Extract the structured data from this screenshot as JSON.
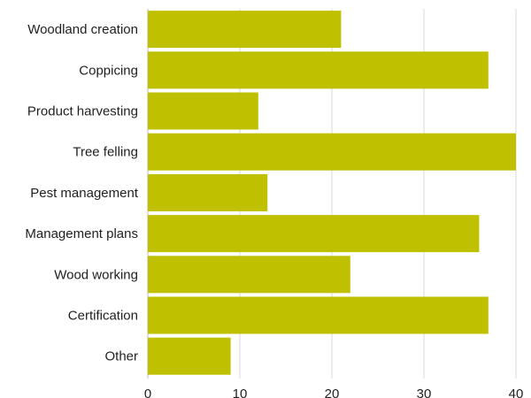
{
  "chart_data": {
    "type": "bar",
    "orientation": "horizontal",
    "categories": [
      "Woodland creation",
      "Coppicing",
      "Product harvesting",
      "Tree felling",
      "Pest management",
      "Management plans",
      "Wood working",
      "Certification",
      "Other"
    ],
    "values": [
      21,
      37,
      12,
      40,
      13,
      36,
      22,
      37,
      9
    ],
    "xlim": [
      0,
      40
    ],
    "xticks": [
      0,
      10,
      20,
      30,
      40
    ],
    "grid": true,
    "bar_color": "#bfc000",
    "title": "",
    "xlabel": "",
    "ylabel": ""
  }
}
